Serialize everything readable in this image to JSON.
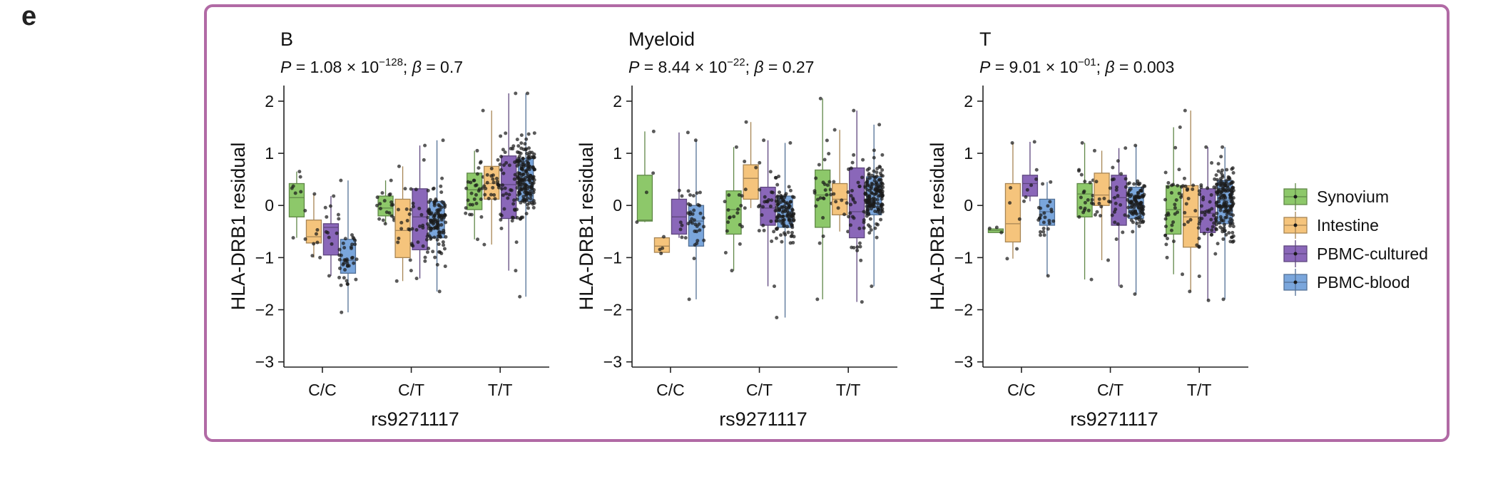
{
  "panel_label": "e",
  "colors": {
    "frame": "#b16aa5",
    "Synovium": "#8dc86a",
    "Intestine": "#f5c47c",
    "PBMC-cultured": "#8a67b9",
    "PBMC-blood": "#7aa6dc"
  },
  "chart_data": [
    {
      "type": "box",
      "title": "B",
      "stat_p_mantissa": "1.08",
      "stat_p_exponent": "−128",
      "stat_beta": "0.7",
      "xlabel": "rs9271117",
      "ylabel": "HLA-DRB1 residual",
      "ylim": [
        -3.1,
        2.3
      ],
      "yticks": [
        2,
        1,
        0,
        -1,
        -2,
        -3
      ],
      "ytick_labels": [
        "2",
        "1",
        "0",
        "−1",
        "−2",
        "−3"
      ],
      "categories": [
        "C/C",
        "C/T",
        "T/T"
      ],
      "series": [
        {
          "name": "Synovium",
          "boxes": [
            {
              "min": -0.62,
              "q1": -0.22,
              "median": 0.15,
              "q3": 0.42,
              "max": 0.65,
              "n": 8
            },
            {
              "min": -0.35,
              "q1": -0.2,
              "median": -0.05,
              "q3": 0.18,
              "max": 0.48,
              "n": 20
            },
            {
              "min": -0.65,
              "q1": -0.08,
              "median": 0.3,
              "q3": 0.62,
              "max": 1.05,
              "n": 30
            }
          ]
        },
        {
          "name": "Intestine",
          "boxes": [
            {
              "min": -1.0,
              "q1": -0.72,
              "median": -0.6,
              "q3": -0.28,
              "max": 0.22,
              "n": 8
            },
            {
              "min": -1.45,
              "q1": -1.0,
              "median": -0.48,
              "q3": 0.12,
              "max": 0.75,
              "n": 15
            },
            {
              "min": -0.75,
              "q1": 0.12,
              "median": 0.42,
              "q3": 0.75,
              "max": 1.82,
              "n": 25
            }
          ]
        },
        {
          "name": "PBMC-cultured",
          "boxes": [
            {
              "min": -1.35,
              "q1": -0.95,
              "median": -0.42,
              "q3": -0.35,
              "max": 0.18,
              "n": 12
            },
            {
              "min": -1.4,
              "q1": -0.85,
              "median": -0.22,
              "q3": 0.32,
              "max": 1.15,
              "n": 30
            },
            {
              "min": -1.25,
              "q1": -0.25,
              "median": 0.4,
              "q3": 0.95,
              "max": 2.15,
              "n": 45
            }
          ]
        },
        {
          "name": "PBMC-blood",
          "boxes": [
            {
              "min": -2.05,
              "q1": -1.3,
              "median": -1.05,
              "q3": -0.65,
              "max": 0.48,
              "n": 40
            },
            {
              "min": -1.65,
              "q1": -0.62,
              "median": -0.3,
              "q3": 0.08,
              "max": 1.25,
              "n": 110
            },
            {
              "min": -1.75,
              "q1": 0.08,
              "median": 0.48,
              "q3": 0.9,
              "max": 2.15,
              "n": 170
            }
          ]
        }
      ]
    },
    {
      "type": "box",
      "title": "Myeloid",
      "stat_p_mantissa": "8.44",
      "stat_p_exponent": "−22",
      "stat_beta": "0.27",
      "xlabel": "rs9271117",
      "ylabel": "HLA-DRB1 residual",
      "ylim": [
        -3.1,
        2.3
      ],
      "yticks": [
        2,
        1,
        0,
        -1,
        -2,
        -3
      ],
      "ytick_labels": [
        "2",
        "1",
        "0",
        "−1",
        "−2",
        "−3"
      ],
      "categories": [
        "C/C",
        "C/T",
        "T/T"
      ],
      "series": [
        {
          "name": "Synovium",
          "boxes": [
            {
              "min": -0.32,
              "q1": -0.3,
              "median": -0.28,
              "q3": 0.58,
              "max": 1.42,
              "n": 4
            },
            {
              "min": -1.25,
              "q1": -0.55,
              "median": -0.08,
              "q3": 0.28,
              "max": 1.12,
              "n": 18
            },
            {
              "min": -1.8,
              "q1": -0.42,
              "median": 0.2,
              "q3": 0.68,
              "max": 2.05,
              "n": 25
            }
          ]
        },
        {
          "name": "Intestine",
          "boxes": [
            {
              "min": -0.92,
              "q1": -0.9,
              "median": -0.78,
              "q3": -0.62,
              "max": -0.6,
              "n": 4
            },
            {
              "min": -0.05,
              "q1": 0.12,
              "median": 0.52,
              "q3": 0.78,
              "max": 1.6,
              "n": 8
            },
            {
              "min": -0.5,
              "q1": -0.18,
              "median": 0.12,
              "q3": 0.42,
              "max": 1.45,
              "n": 10
            }
          ]
        },
        {
          "name": "PBMC-cultured",
          "boxes": [
            {
              "min": -0.62,
              "q1": -0.55,
              "median": -0.22,
              "q3": 0.12,
              "max": 1.4,
              "n": 8
            },
            {
              "min": -1.55,
              "q1": -0.38,
              "median": -0.05,
              "q3": 0.35,
              "max": 1.25,
              "n": 25
            },
            {
              "min": -1.85,
              "q1": -0.62,
              "median": -0.12,
              "q3": 0.72,
              "max": 1.82,
              "n": 35
            }
          ]
        },
        {
          "name": "PBMC-blood",
          "boxes": [
            {
              "min": -1.8,
              "q1": -0.78,
              "median": -0.3,
              "q3": 0.0,
              "max": 1.25,
              "n": 35
            },
            {
              "min": -2.15,
              "q1": -0.42,
              "median": -0.12,
              "q3": 0.18,
              "max": 1.2,
              "n": 110
            },
            {
              "min": -1.55,
              "q1": -0.18,
              "median": 0.22,
              "q3": 0.55,
              "max": 1.55,
              "n": 160
            }
          ]
        }
      ]
    },
    {
      "type": "box",
      "title": "T",
      "stat_p_mantissa": "9.01",
      "stat_p_exponent": "−01",
      "stat_beta": "0.003",
      "xlabel": "rs9271117",
      "ylabel": "HLA-DRB1 residual",
      "ylim": [
        -3.1,
        2.3
      ],
      "yticks": [
        2,
        1,
        0,
        -1,
        -2,
        -3
      ],
      "ytick_labels": [
        "2",
        "1",
        "0",
        "−1",
        "−2",
        "−3"
      ],
      "categories": [
        "C/C",
        "C/T",
        "T/T"
      ],
      "series": [
        {
          "name": "Synovium",
          "boxes": [
            {
              "min": -0.52,
              "q1": -0.52,
              "median": -0.48,
              "q3": -0.45,
              "max": -0.42,
              "n": 3
            },
            {
              "min": -1.42,
              "q1": -0.22,
              "median": 0.22,
              "q3": 0.42,
              "max": 1.2,
              "n": 22
            },
            {
              "min": -1.32,
              "q1": -0.55,
              "median": -0.08,
              "q3": 0.38,
              "max": 1.5,
              "n": 35
            }
          ]
        },
        {
          "name": "Intestine",
          "boxes": [
            {
              "min": -1.02,
              "q1": -0.7,
              "median": -0.35,
              "q3": 0.42,
              "max": 1.2,
              "n": 6
            },
            {
              "min": -1.05,
              "q1": 0.0,
              "median": 0.2,
              "q3": 0.62,
              "max": 1.05,
              "n": 12
            },
            {
              "min": -1.65,
              "q1": -0.8,
              "median": -0.22,
              "q3": 0.38,
              "max": 1.82,
              "n": 20
            }
          ]
        },
        {
          "name": "PBMC-cultured",
          "boxes": [
            {
              "min": 0.08,
              "q1": 0.18,
              "median": 0.42,
              "q3": 0.58,
              "max": 1.22,
              "n": 7
            },
            {
              "min": -1.55,
              "q1": -0.38,
              "median": 0.15,
              "q3": 0.58,
              "max": 1.1,
              "n": 25
            },
            {
              "min": -1.82,
              "q1": -0.52,
              "median": -0.15,
              "q3": 0.32,
              "max": 1.12,
              "n": 40
            }
          ]
        },
        {
          "name": "PBMC-blood",
          "boxes": [
            {
              "min": -1.35,
              "q1": -0.38,
              "median": -0.12,
              "q3": 0.12,
              "max": 0.45,
              "n": 25
            },
            {
              "min": -1.7,
              "q1": -0.25,
              "median": 0.02,
              "q3": 0.35,
              "max": 1.15,
              "n": 100
            },
            {
              "min": -1.8,
              "q1": -0.35,
              "median": 0.1,
              "q3": 0.48,
              "max": 1.12,
              "n": 160
            }
          ]
        }
      ]
    }
  ],
  "legend": {
    "placement": "right",
    "entries": [
      "Synovium",
      "Intestine",
      "PBMC-cultured",
      "PBMC-blood"
    ]
  }
}
